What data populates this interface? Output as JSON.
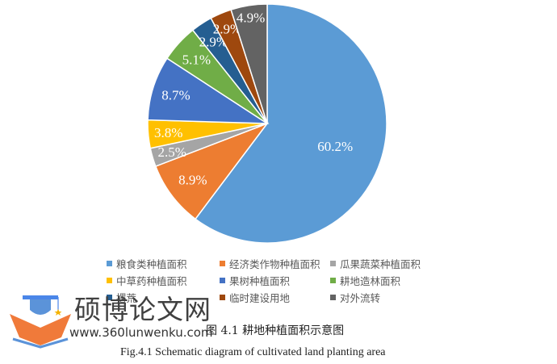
{
  "chart_data": {
    "type": "pie",
    "title": "图 4.1 耕地种植面积示意图",
    "subtitle": "Fig.4.1 Schematic diagram of cultivated land planting area",
    "start_angle": "12 o'clock, clockwise",
    "legend_position": "bottom",
    "categories": [
      "粮食类种植面积",
      "经济类作物种植面积",
      "瓜果蔬菜种植面积",
      "中草药种植面积",
      "果树种植面积",
      "耕地造林面积",
      "撂荒",
      "临时建设用地",
      "对外流转"
    ],
    "values": [
      60.2,
      8.9,
      2.5,
      3.8,
      8.7,
      5.1,
      2.9,
      2.9,
      4.9
    ],
    "labels": [
      "60.2%",
      "8.9%",
      "2.5%",
      "3.8%",
      "8.7%",
      "5.1%",
      "2.9%",
      "2.9%",
      "4.9%"
    ],
    "colors": [
      "#5B9BD5",
      "#ED7D31",
      "#A5A5A5",
      "#FFC000",
      "#4472C4",
      "#70AD47",
      "#255E91",
      "#9E480E",
      "#636363"
    ],
    "unit": "%"
  },
  "legend": {
    "rows": [
      [
        {
          "label": "粮食类种植面积",
          "color": "#5B9BD5"
        },
        {
          "label": "经济类作物种植面积",
          "color": "#ED7D31"
        },
        {
          "label": "瓜果蔬菜种植面积",
          "color": "#A5A5A5"
        }
      ],
      [
        {
          "label": "中草药种植面积",
          "color": "#FFC000"
        },
        {
          "label": "果树种植面积",
          "color": "#4472C4"
        },
        {
          "label": "耕地造林面积",
          "color": "#70AD47"
        }
      ],
      [
        {
          "label": "撂荒",
          "color": "#255E91"
        },
        {
          "label": "临时建设用地",
          "color": "#9E480E"
        },
        {
          "label": "对外流转",
          "color": "#636363"
        }
      ]
    ]
  },
  "watermark": {
    "title": "硕博论文网",
    "url": "www.360lunwenku.com"
  },
  "caption": {
    "cn": "图 4.1 耕地种植面积示意图",
    "en": "Fig.4.1 Schematic diagram of cultivated land planting area"
  }
}
